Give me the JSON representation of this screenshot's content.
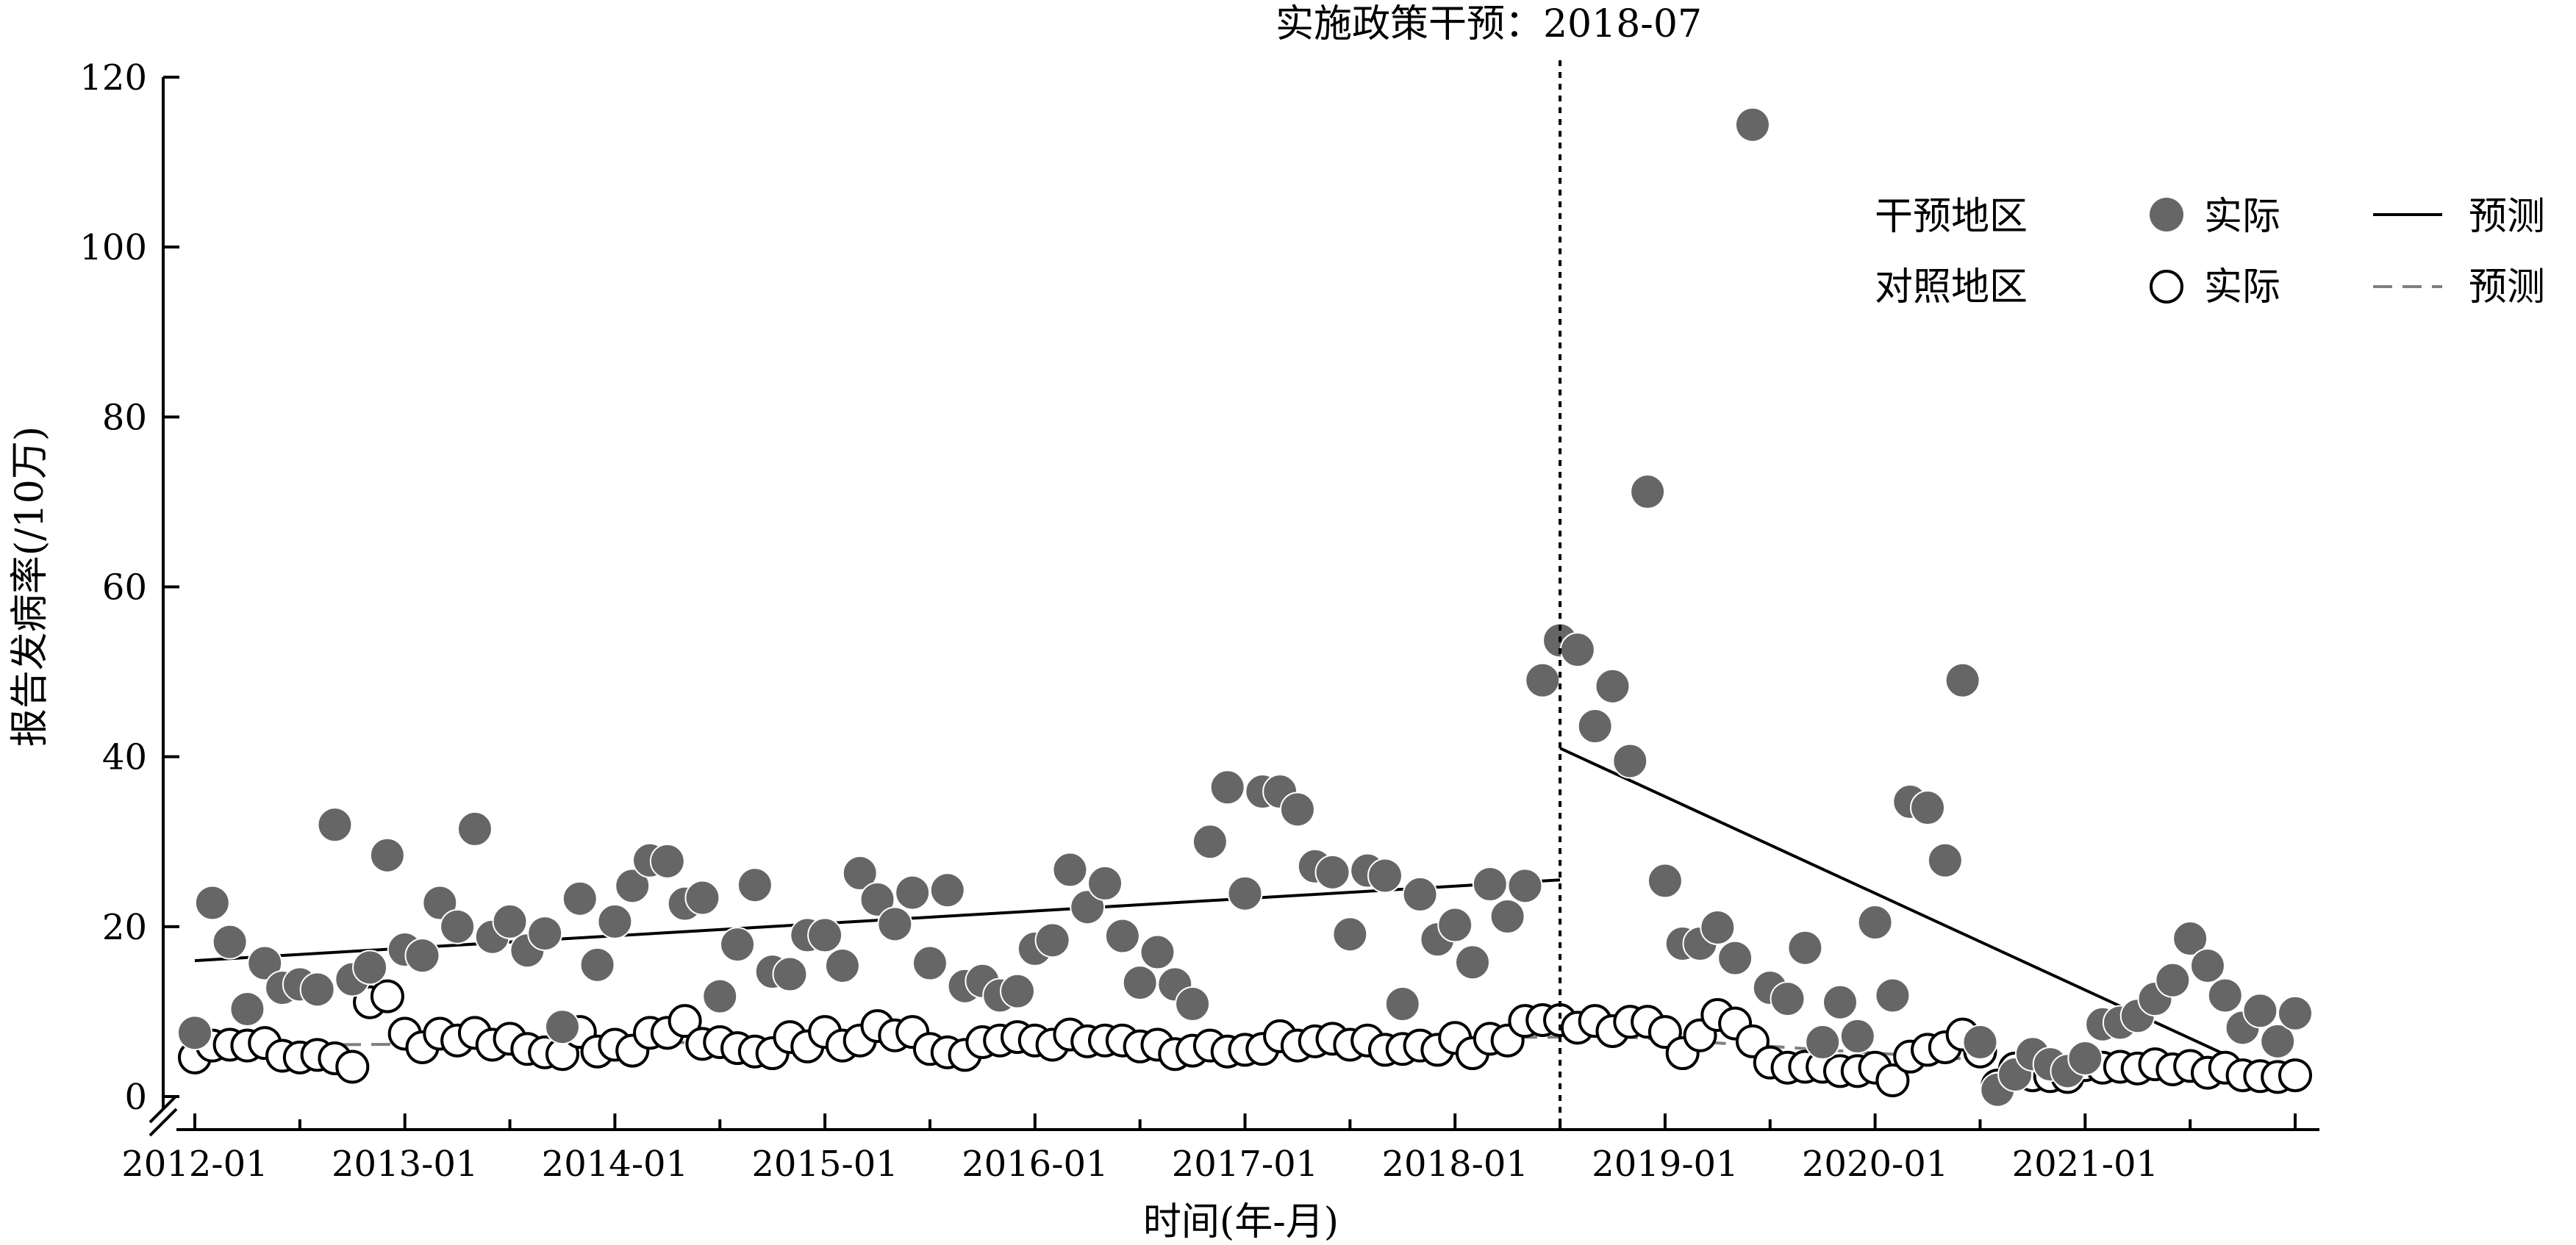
{
  "chart_data": {
    "type": "scatter",
    "title": "",
    "xlabel": "时间(年-月)",
    "ylabel": "报告发病率(/10万)",
    "ylim": [
      0,
      120
    ],
    "yticks": [
      0,
      20,
      40,
      60,
      80,
      100,
      120
    ],
    "xlim": [
      "2012-01",
      "2022-01"
    ],
    "xticks": [
      "2012-01",
      "2013-01",
      "2014-01",
      "2015-01",
      "2016-01",
      "2017-01",
      "2018-01",
      "2019-01",
      "2020-01",
      "2021-01"
    ],
    "grid": false,
    "legend_position": "top-right",
    "annotation": {
      "label": "实施政策干预：2018-07",
      "x": "2018-07"
    },
    "legend": {
      "groups": [
        {
          "region": "干预地区",
          "actual_label": "实际",
          "pred_label": "预测"
        },
        {
          "region": "对照地区",
          "actual_label": "实际",
          "pred_label": "预测"
        }
      ]
    },
    "colors": {
      "intervention_fill": "#666666",
      "control_stroke": "#000000",
      "control_pred_line": "#808080",
      "intervention_pred_line": "#000000"
    },
    "x_start": "2012-01",
    "series": [
      {
        "name": "干预地区 实际",
        "marker": "filled-circle",
        "values": [
          7.5,
          22.8,
          18.2,
          10.3,
          15.7,
          12.8,
          13.2,
          12.6,
          32,
          13.8,
          15.2,
          28.4,
          17.3,
          16.6,
          22.8,
          20,
          31.5,
          18.8,
          20.6,
          17.2,
          19.2,
          8.2,
          23.3,
          15.5,
          20.6,
          24.8,
          27.8,
          27.7,
          22.7,
          23.4,
          11.8,
          17.9,
          24.9,
          14.7,
          14.4,
          19,
          19,
          15.4,
          26.3,
          23.2,
          20.3,
          24,
          15.7,
          24.3,
          13,
          13.6,
          11.9,
          12.4,
          17.4,
          18.4,
          26.7,
          22.3,
          25.1,
          18.9,
          13.4,
          17,
          13.2,
          10.9,
          30,
          36.4,
          23.9,
          35.9,
          35.9,
          33.8,
          27.1,
          26.4,
          19.1,
          26.6,
          26,
          10.9,
          23.8,
          18.5,
          20.2,
          15.8,
          25,
          21.2,
          24.8,
          49,
          53.7,
          52.6,
          43.6,
          48.3,
          39.5,
          71.2,
          25.4,
          18,
          18,
          19.9,
          16.3,
          114.4,
          12.8,
          11.5,
          17.5,
          6.4,
          11.1,
          7.1,
          20.5,
          11.9,
          34.7,
          34,
          27.8,
          49,
          6.4,
          0.8,
          2.6,
          5,
          3.8,
          3,
          4.5,
          8.5,
          8.7,
          9.5,
          11.5,
          13.7,
          18.6,
          15.4,
          11.9,
          8.1,
          10.1,
          6.5,
          9.8
        ]
      },
      {
        "name": "对照地区 实际",
        "marker": "open-circle",
        "values": [
          4.6,
          6,
          6.1,
          6,
          6.3,
          4.8,
          4.6,
          4.9,
          4.5,
          3.5,
          11.1,
          11.8,
          7.4,
          5.8,
          7.4,
          6.6,
          7.5,
          6.1,
          6.8,
          5.6,
          5.2,
          5,
          7.6,
          5.3,
          6.1,
          5.4,
          7.5,
          7.5,
          8.9,
          6.2,
          6.4,
          5.7,
          5.3,
          5.1,
          7,
          5.9,
          7.6,
          6,
          6.6,
          8.3,
          7.2,
          7.6,
          5.6,
          5.2,
          4.9,
          6.4,
          6.6,
          7,
          6.6,
          6.1,
          7.3,
          6.5,
          6.6,
          6.6,
          5.9,
          6.1,
          5,
          5.4,
          6,
          5.3,
          5.5,
          5.6,
          7.1,
          6,
          6.5,
          6.8,
          6.1,
          6.6,
          5.5,
          5.6,
          6,
          5.5,
          6.9,
          5.1,
          6.8,
          6.6,
          8.9,
          9,
          9,
          8.1,
          8.9,
          7.7,
          8.8,
          8.8,
          7.6,
          5.1,
          7.2,
          9.6,
          8.6,
          6.5,
          4,
          3.4,
          3.5,
          3.5,
          3,
          3,
          3.4,
          1.9,
          4.7,
          5.5,
          5.8,
          7.3,
          5.3,
          1.3,
          3.3,
          2.5,
          2.4,
          2.3,
          3.7,
          3.4,
          3.5,
          3.3,
          3.8,
          3.2,
          3.6,
          2.8,
          3.4,
          2.5,
          2.4,
          2.3,
          2.5
        ]
      },
      {
        "name": "干预地区 预测",
        "line": "solid",
        "segments": [
          {
            "x": [
              "2012-01",
              "2018-07"
            ],
            "y": [
              16,
              25.5
            ]
          },
          {
            "x": [
              "2018-07",
              "2021-10"
            ],
            "y": [
              41,
              4
            ]
          }
        ]
      },
      {
        "name": "对照地区 预测",
        "line": "dashed",
        "segments": [
          {
            "x": [
              "2012-01",
              "2018-07"
            ],
            "y": [
              6,
              7
            ]
          },
          {
            "x": [
              "2018-07",
              "2021-11"
            ],
            "y": [
              7.5,
              2.2
            ]
          }
        ]
      }
    ]
  }
}
